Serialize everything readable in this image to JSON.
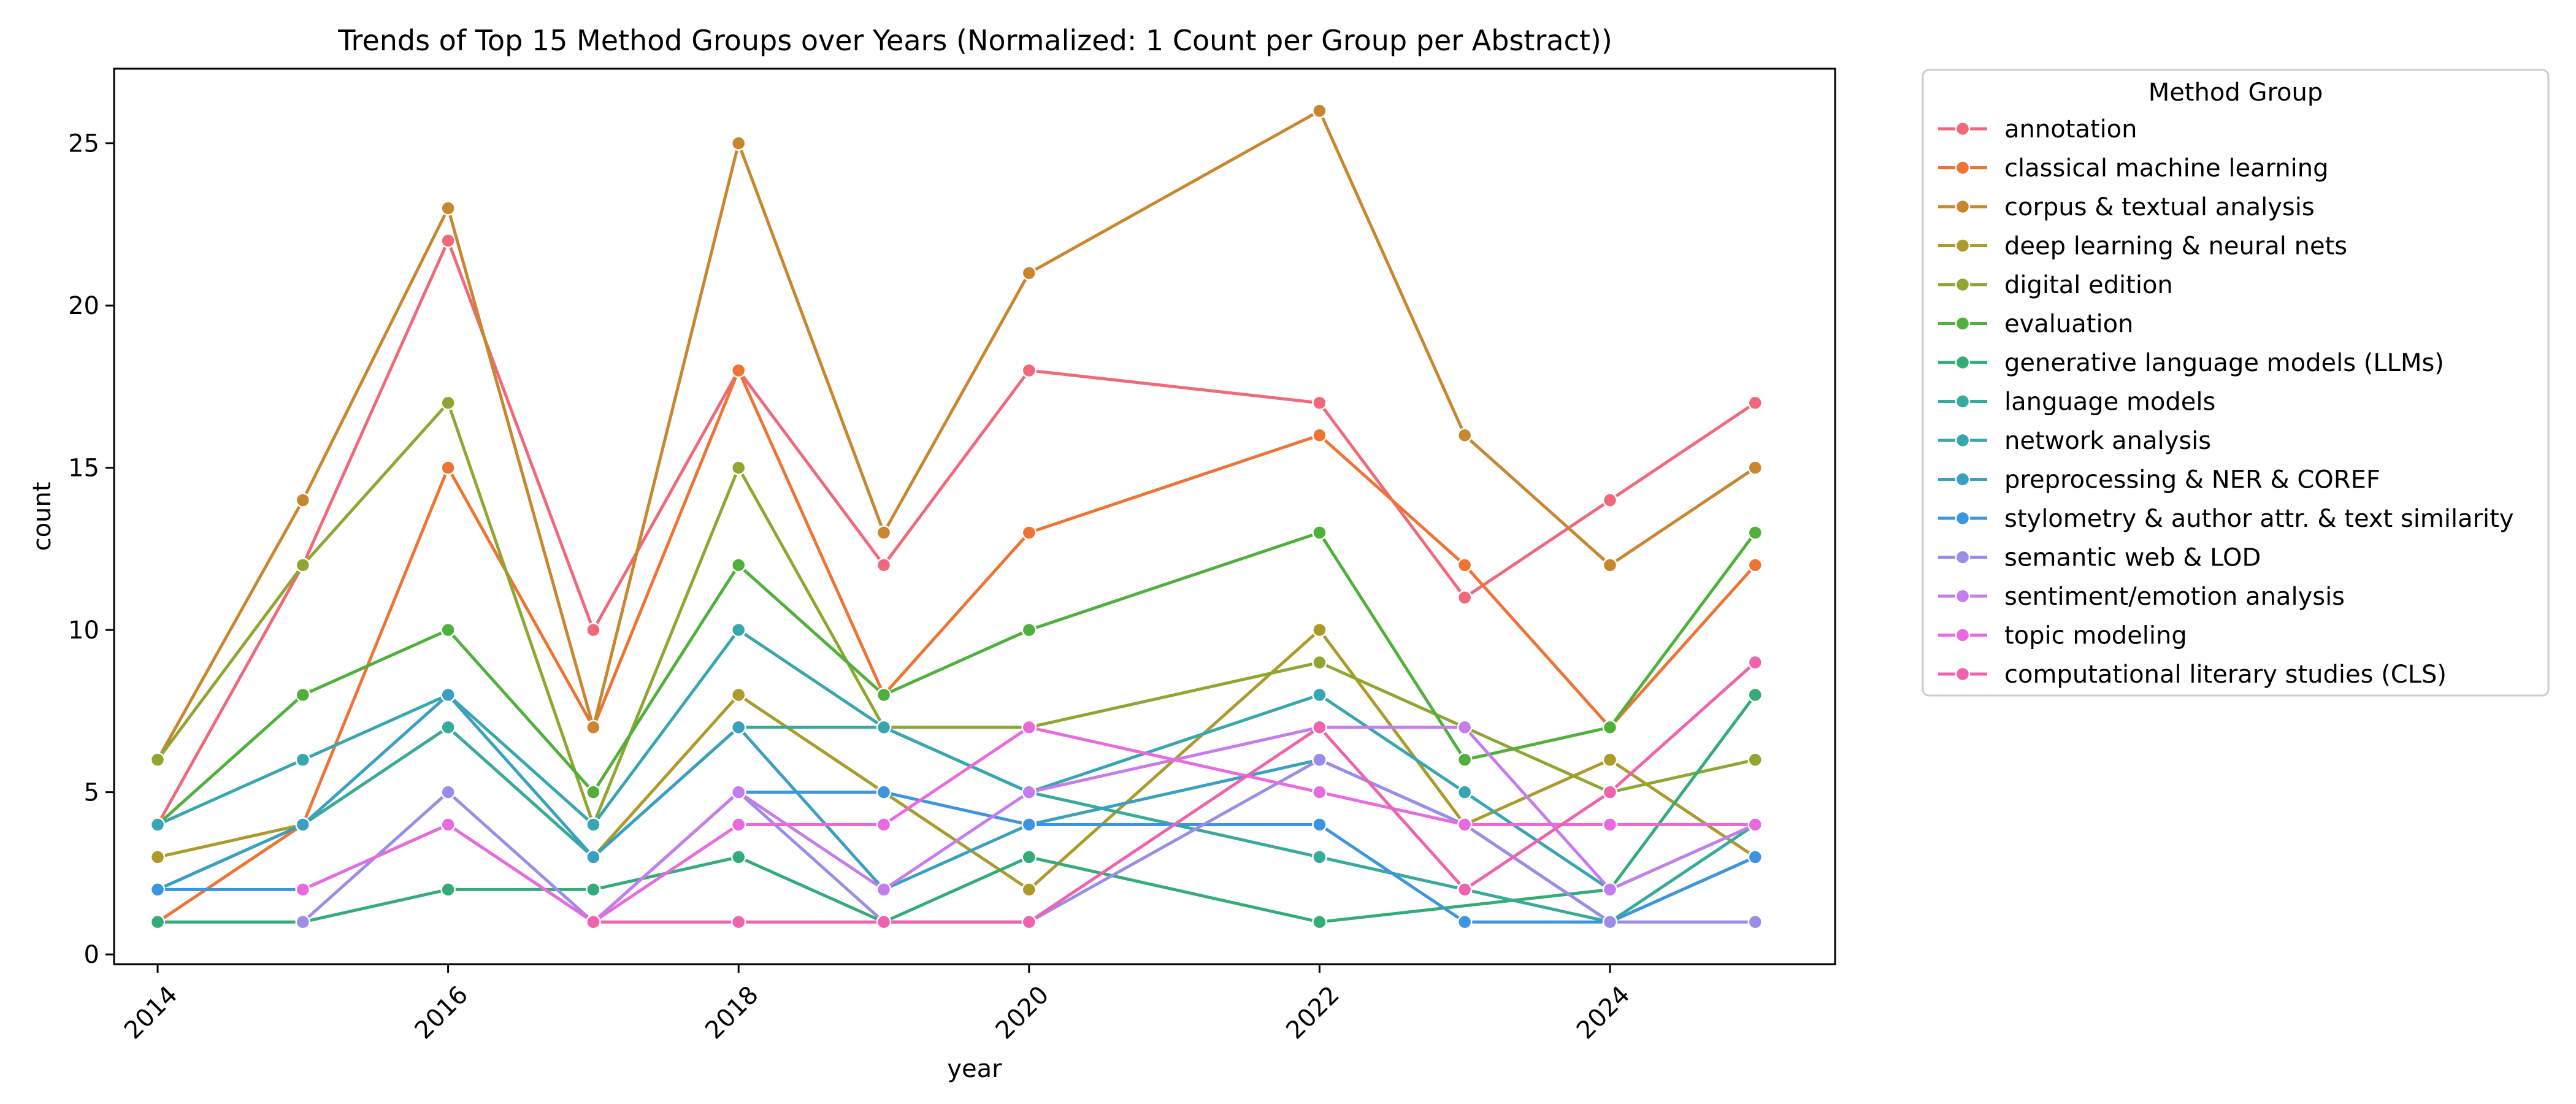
{
  "chart_data": {
    "type": "line",
    "title": "Trends of Top 15 Method Groups over Years (Normalized: 1 Count per Group per Abstract))",
    "xlabel": "year",
    "ylabel": "count",
    "xlim": [
      2013.7,
      2025.55
    ],
    "ylim": [
      -0.3,
      27.3
    ],
    "xticks": [
      2014,
      2016,
      2018,
      2020,
      2022,
      2024
    ],
    "yticks": [
      0,
      5,
      10,
      15,
      20,
      25
    ],
    "grid": false,
    "legend": {
      "title": "Method Group",
      "placement": "outside-right"
    },
    "x": [
      2014,
      2015,
      2016,
      2017,
      2018,
      2019,
      2020,
      2022,
      2023,
      2024,
      2025
    ],
    "series": [
      {
        "name": "annotation",
        "color": "#f0697b",
        "values": [
          4,
          12,
          22,
          10,
          18,
          12,
          18,
          17,
          11,
          14,
          17
        ]
      },
      {
        "name": "classical machine learning",
        "color": "#ee7433",
        "values": [
          1,
          4,
          15,
          7,
          18,
          8,
          13,
          16,
          12,
          7,
          12
        ]
      },
      {
        "name": "corpus & textual analysis",
        "color": "#c8872e",
        "values": [
          6,
          14,
          23,
          7,
          25,
          13,
          21,
          26,
          16,
          12,
          15
        ]
      },
      {
        "name": "deep learning & neural nets",
        "color": "#ac9a29",
        "values": [
          3,
          4,
          7,
          3,
          8,
          5,
          2,
          10,
          4,
          6,
          3
        ]
      },
      {
        "name": "digital edition",
        "color": "#8fa631",
        "values": [
          6,
          12,
          17,
          4,
          15,
          7,
          7,
          9,
          7,
          5,
          6
        ]
      },
      {
        "name": "evaluation",
        "color": "#4fb03b",
        "values": [
          4,
          8,
          10,
          5,
          12,
          8,
          10,
          13,
          6,
          7,
          13
        ]
      },
      {
        "name": "generative language models (LLMs)",
        "color": "#34ab79",
        "values": [
          1,
          1,
          2,
          2,
          3,
          1,
          3,
          1,
          null,
          2,
          8
        ]
      },
      {
        "name": "language models",
        "color": "#36ab9b",
        "values": [
          2,
          4,
          7,
          3,
          7,
          7,
          5,
          3,
          2,
          1,
          4
        ]
      },
      {
        "name": "network analysis",
        "color": "#37a6b0",
        "values": [
          4,
          6,
          8,
          4,
          10,
          7,
          5,
          8,
          5,
          2,
          4
        ]
      },
      {
        "name": "preprocessing & NER & COREF",
        "color": "#3aa0c1",
        "values": [
          2,
          4,
          8,
          3,
          7,
          2,
          4,
          6,
          4,
          1,
          3
        ]
      },
      {
        "name": "stylometry & author attr. & text similarity",
        "color": "#3d95e0",
        "values": [
          2,
          2,
          4,
          1,
          5,
          5,
          4,
          4,
          1,
          1,
          3
        ]
      },
      {
        "name": "semantic web & LOD",
        "color": "#9b8ce8",
        "values": [
          null,
          1,
          5,
          1,
          5,
          1,
          1,
          6,
          4,
          1,
          1
        ]
      },
      {
        "name": "sentiment/emotion analysis",
        "color": "#c57ced",
        "values": [
          null,
          null,
          null,
          1,
          5,
          2,
          5,
          7,
          7,
          2,
          4
        ]
      },
      {
        "name": "topic modeling",
        "color": "#e96ae0",
        "values": [
          null,
          2,
          4,
          1,
          4,
          4,
          7,
          5,
          4,
          4,
          4
        ]
      },
      {
        "name": "computational literary studies (CLS)",
        "color": "#f062ab",
        "values": [
          null,
          null,
          null,
          1,
          1,
          1,
          1,
          7,
          2,
          5,
          9
        ]
      }
    ]
  }
}
